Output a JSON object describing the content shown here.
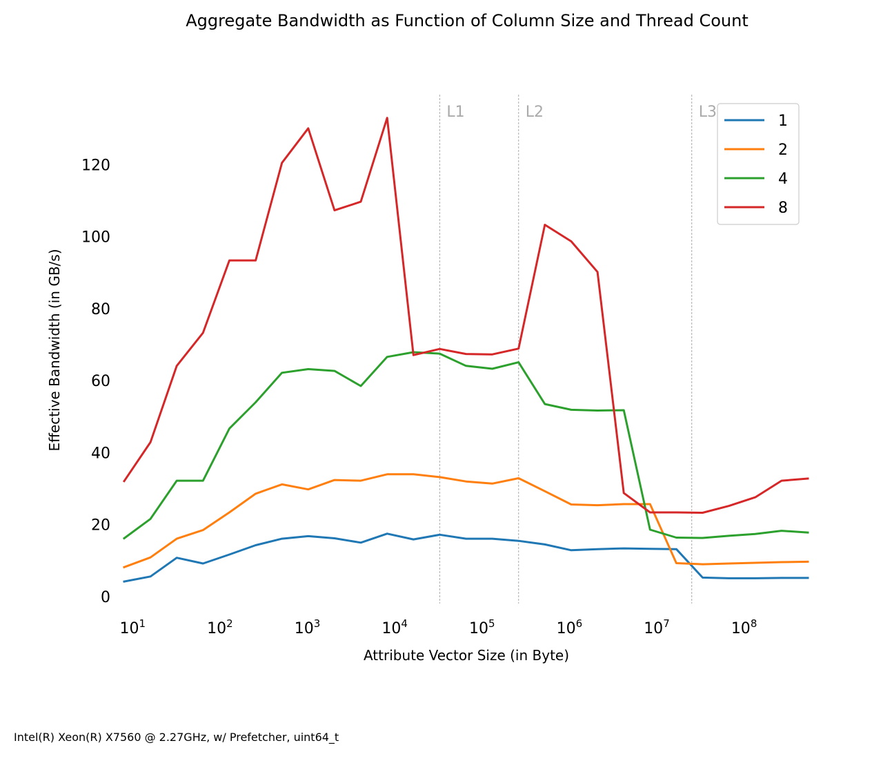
{
  "footnote": "Intel(R) Xeon(R) X7560 @ 2.27GHz, w/ Prefetcher, uint64_t",
  "chart_data": {
    "type": "line",
    "title": "Aggregate Bandwidth as Function of Column Size and Thread Count",
    "xlabel": "Attribute Vector Size (in Byte)",
    "ylabel": "Effective Bandwidth (in GB/s)",
    "xscale": "log",
    "xlim": [
      8,
      536870912
    ],
    "ylim": [
      0,
      140
    ],
    "xticks": [
      {
        "value": 10,
        "base": "10",
        "exp": "1"
      },
      {
        "value": 100,
        "base": "10",
        "exp": "2"
      },
      {
        "value": 1000,
        "base": "10",
        "exp": "3"
      },
      {
        "value": 10000,
        "base": "10",
        "exp": "4"
      },
      {
        "value": 100000,
        "base": "10",
        "exp": "5"
      },
      {
        "value": 1000000,
        "base": "10",
        "exp": "6"
      },
      {
        "value": 10000000,
        "base": "10",
        "exp": "7"
      },
      {
        "value": 100000000,
        "base": "10",
        "exp": "8"
      }
    ],
    "yticks": [
      0,
      20,
      40,
      60,
      80,
      100,
      120
    ],
    "grid": false,
    "legend_position": "top-right",
    "cache_lines": [
      {
        "label": "L1",
        "x": 32768
      },
      {
        "label": "L2",
        "x": 262144
      },
      {
        "label": "L3",
        "x": 25165824
      }
    ],
    "x": [
      8,
      16,
      32,
      64,
      128,
      256,
      512,
      1024,
      2048,
      4096,
      8192,
      16384,
      32768,
      65536,
      131072,
      262144,
      524288,
      1048576,
      2097152,
      4194304,
      8388608,
      16777216,
      33554432,
      67108864,
      134217728,
      268435456,
      536870912
    ],
    "series": [
      {
        "name": "1",
        "color": "#1f77b4",
        "values": [
          4.2,
          5.6,
          10.8,
          9.2,
          11.7,
          14.3,
          16.1,
          16.8,
          16.2,
          15.0,
          17.5,
          15.9,
          17.2,
          16.1,
          16.1,
          15.5,
          14.5,
          12.9,
          13.2,
          13.4,
          13.3,
          13.2,
          5.3,
          5.1,
          5.1,
          5.2,
          5.2
        ]
      },
      {
        "name": "2",
        "color": "#ff7f0e",
        "values": [
          8.2,
          10.9,
          16.1,
          18.5,
          23.4,
          28.6,
          31.2,
          29.8,
          32.4,
          32.2,
          34.0,
          34.0,
          33.2,
          32.0,
          31.4,
          32.9,
          29.3,
          25.6,
          25.4,
          25.7,
          25.7,
          9.3,
          9.0,
          9.2,
          9.4,
          9.6,
          9.7
        ]
      },
      {
        "name": "4",
        "color": "#2ca02c",
        "values": [
          16.2,
          21.6,
          32.2,
          32.2,
          46.7,
          54.0,
          62.2,
          63.2,
          62.7,
          58.5,
          66.6,
          67.9,
          67.5,
          64.1,
          63.3,
          65.1,
          53.5,
          51.9,
          51.7,
          51.8,
          18.6,
          16.4,
          16.3,
          16.9,
          17.4,
          18.3,
          17.8
        ]
      },
      {
        "name": "8",
        "color": "#d62728",
        "values": [
          32.1,
          42.9,
          64.1,
          73.3,
          93.4,
          93.4,
          120.5,
          130.1,
          107.3,
          109.7,
          133.0,
          67.1,
          68.8,
          67.4,
          67.3,
          68.9,
          103.3,
          98.7,
          90.2,
          28.8,
          23.4,
          23.4,
          23.3,
          25.2,
          27.6,
          32.2,
          32.8
        ]
      }
    ]
  }
}
